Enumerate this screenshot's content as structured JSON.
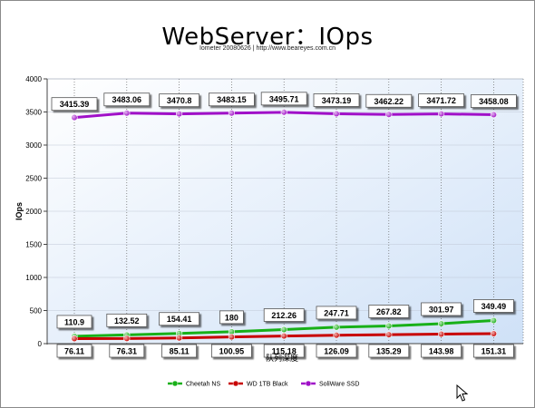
{
  "title": "WebServer：IOps",
  "subtitle": "Iometer 20080626 | http://www.beareyes.com.cn",
  "chart_data": {
    "type": "line",
    "xlabel": "队列深度",
    "ylabel": "IOps",
    "ylim": [
      0,
      4000
    ],
    "yticks": [
      0,
      500,
      1000,
      1500,
      2000,
      2500,
      3000,
      3500,
      4000
    ],
    "grid": true,
    "legend_position": "bottom",
    "x": [
      1,
      2,
      3,
      4,
      5,
      6,
      7,
      8,
      9
    ],
    "series": [
      {
        "name": "Cheetah NS",
        "color": "#18b018",
        "values": [
          110.9,
          132.52,
          154.41,
          180,
          212.26,
          247.71,
          267.82,
          301.97,
          349.49
        ],
        "label_side": "above"
      },
      {
        "name": "WD 1TB Black",
        "color": "#c80000",
        "values": [
          76.11,
          76.31,
          85.11,
          100.95,
          115.18,
          126.09,
          135.29,
          143.98,
          151.31
        ],
        "label_side": "below"
      },
      {
        "name": "SoliWare SSD",
        "color": "#a010c8",
        "values": [
          3415.39,
          3483.06,
          3470.8,
          3483.15,
          3495.71,
          3473.19,
          3462.22,
          3471.72,
          3458.08
        ],
        "label_side": "above"
      }
    ]
  }
}
